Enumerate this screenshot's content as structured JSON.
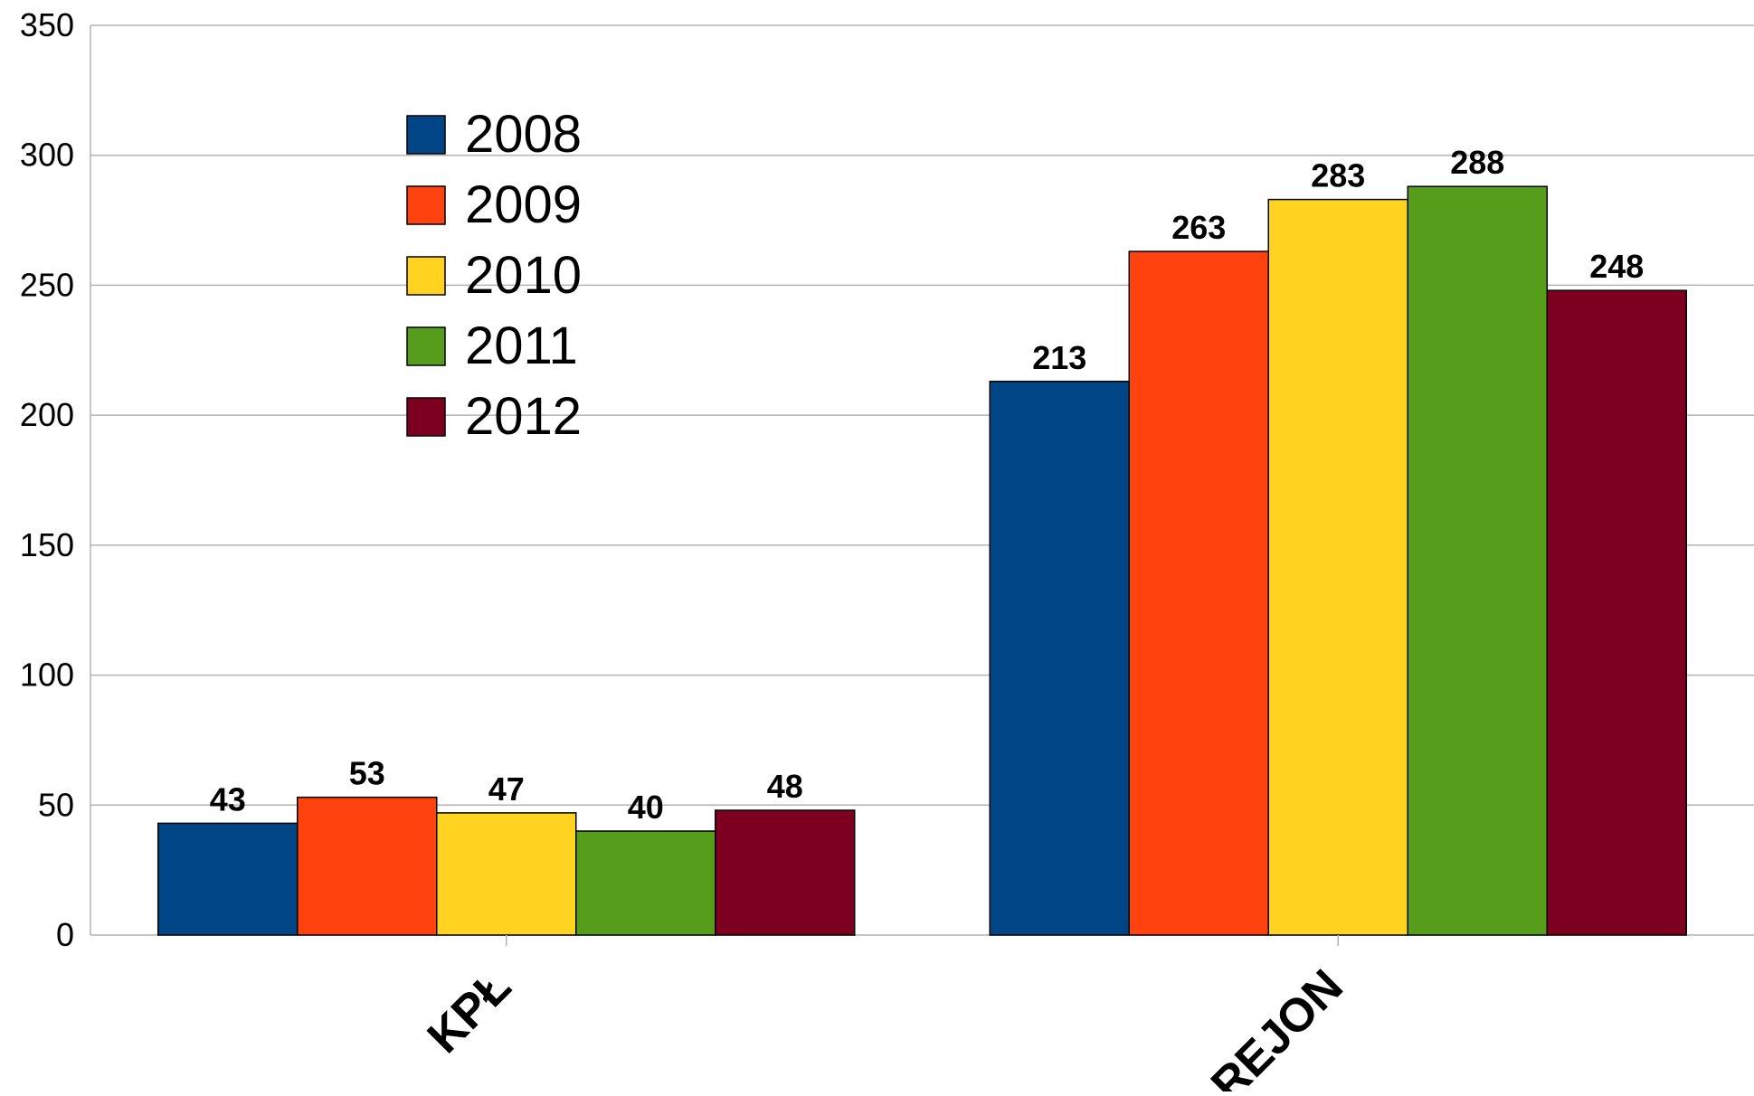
{
  "chart_data": {
    "type": "bar",
    "title": "",
    "xlabel": "",
    "ylabel": "",
    "categories": [
      "KPŁ",
      "REJON"
    ],
    "series": [
      {
        "name": "2008",
        "color": "#004586",
        "values": [
          43,
          213
        ]
      },
      {
        "name": "2009",
        "color": "#ff420e",
        "values": [
          53,
          263
        ]
      },
      {
        "name": "2010",
        "color": "#ffd320",
        "values": [
          47,
          283
        ]
      },
      {
        "name": "2011",
        "color": "#579d1c",
        "values": [
          40,
          288
        ]
      },
      {
        "name": "2012",
        "color": "#7e0021",
        "values": [
          48,
          248
        ]
      }
    ],
    "ylim": [
      0,
      350
    ],
    "yticks": [
      0,
      50,
      100,
      150,
      200,
      250,
      300,
      350
    ],
    "grid": true,
    "legend_position": "top-left inside plot",
    "data_labels": true,
    "category_label_rotation": "diagonal"
  }
}
